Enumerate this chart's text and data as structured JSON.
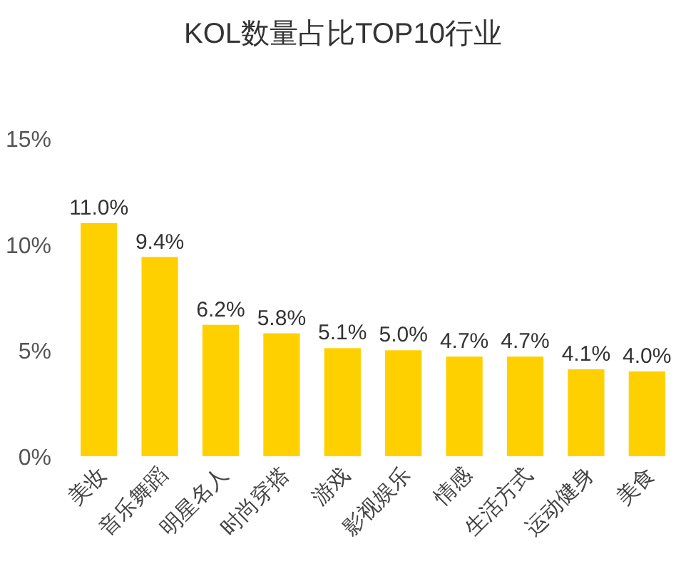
{
  "chart_data": {
    "type": "bar",
    "title": "KOL数量占比TOP10行业",
    "categories": [
      "美妆",
      "音乐舞蹈",
      "明星名人",
      "时尚穿搭",
      "游戏",
      "影视娱乐",
      "情感",
      "生活方式",
      "运动健身",
      "美食"
    ],
    "values": [
      11.0,
      9.4,
      6.2,
      5.8,
      5.1,
      5.0,
      4.7,
      4.7,
      4.1,
      4.0
    ],
    "value_labels": [
      "11.0%",
      "9.4%",
      "6.2%",
      "5.8%",
      "5.1%",
      "5.0%",
      "4.7%",
      "4.7%",
      "4.1%",
      "4.0%"
    ],
    "color": "#ffd000",
    "ylim": [
      0,
      15
    ],
    "yticks": [
      {
        "value": 0,
        "label": "0%"
      },
      {
        "value": 5,
        "label": "5%"
      },
      {
        "value": 10,
        "label": "10%"
      },
      {
        "value": 15,
        "label": "15%"
      }
    ],
    "grid": false
  }
}
